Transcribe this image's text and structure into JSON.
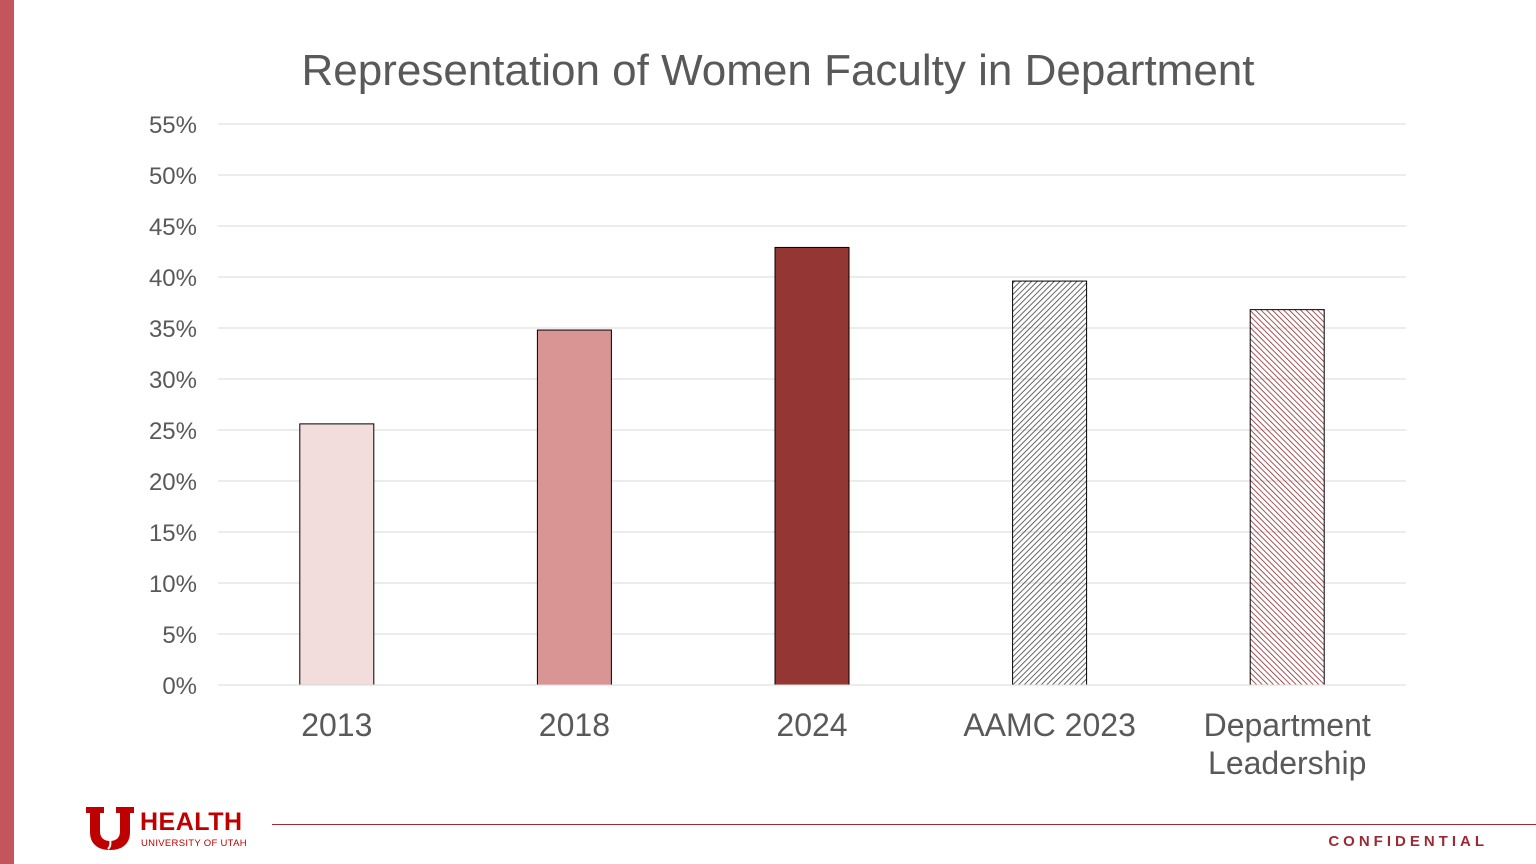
{
  "chart_data": {
    "type": "bar",
    "title": "Representation of Women Faculty in Department",
    "categories": [
      "2013",
      "2018",
      "2024",
      "AAMC 2023",
      "Department Leadership"
    ],
    "category_lines": [
      [
        "2013"
      ],
      [
        "2018"
      ],
      [
        "2024"
      ],
      [
        "AAMC 2023"
      ],
      [
        "Department",
        "Leadership"
      ]
    ],
    "values": [
      25.6,
      34.8,
      42.9,
      39.6,
      36.8
    ],
    "value_unit": "%",
    "ylim": [
      0,
      55
    ],
    "yticks": [
      0,
      5,
      10,
      15,
      20,
      25,
      30,
      35,
      40,
      45,
      50,
      55
    ],
    "ytick_labels": [
      "0%",
      "5%",
      "10%",
      "15%",
      "20%",
      "25%",
      "30%",
      "35%",
      "40%",
      "45%",
      "50%",
      "55%"
    ],
    "grid": true,
    "legend": "none",
    "bar_fills": [
      {
        "kind": "solid",
        "color": "#f2dcdc"
      },
      {
        "kind": "solid",
        "color": "#d99594"
      },
      {
        "kind": "solid",
        "color": "#943634"
      },
      {
        "kind": "hatch",
        "color": "#404040"
      },
      {
        "kind": "hatch",
        "color": "#8b2a2d"
      }
    ],
    "bar_outline": "#000000"
  },
  "footer": {
    "brand": "HEALTH",
    "brand_sub": "UNIVERSITY OF UTAH",
    "label": "CONFIDENTIAL"
  },
  "colors": {
    "accent_strip": "#c4555c",
    "brand_red": "#be0000",
    "footer_line": "#9c2a35"
  }
}
